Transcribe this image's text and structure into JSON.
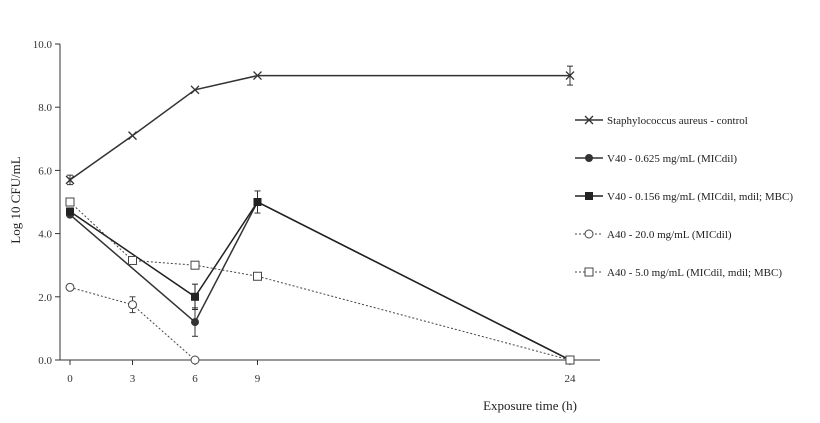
{
  "chart_data": {
    "type": "line",
    "xlabel": "Exposure time (h)",
    "ylabel": "Log 10 CFU/mL",
    "xlim": [
      0,
      24
    ],
    "ylim": [
      0,
      10
    ],
    "x_ticks": [
      0,
      3,
      6,
      9,
      24
    ],
    "x_tick_labels": [
      "0",
      "3",
      "6",
      "9",
      "24"
    ],
    "y_ticks": [
      0,
      2,
      4,
      6,
      8,
      10
    ],
    "y_tick_labels": [
      "0.0",
      "2.0",
      "4.0",
      "6.0",
      "8.0",
      "10.0"
    ],
    "grid": false,
    "legend_position": "right",
    "series": [
      {
        "name": "Staphylococcus aureus - control",
        "marker": "x",
        "line": "solid",
        "color": "#333333",
        "points": [
          {
            "x": 0,
            "y": 5.7,
            "err": 0.15
          },
          {
            "x": 3,
            "y": 7.1
          },
          {
            "x": 6,
            "y": 8.55
          },
          {
            "x": 9,
            "y": 9.0
          },
          {
            "x": 24,
            "y": 9.0,
            "err": 0.3
          }
        ]
      },
      {
        "name": "V40 - 0.625 mg/mL (MICdil)",
        "marker": "circle-filled",
        "line": "solid",
        "color": "#333333",
        "points": [
          {
            "x": 0,
            "y": 4.6
          },
          {
            "x": 6,
            "y": 1.2,
            "err": 0.45
          },
          {
            "x": 9,
            "y": 5.0,
            "err": 0.35
          },
          {
            "x": 24,
            "y": 0.0
          }
        ]
      },
      {
        "name": "V40 - 0.156 mg/mL (MICdil, mdil; MBC)",
        "marker": "square-filled",
        "line": "solid",
        "color": "#222222",
        "points": [
          {
            "x": 0,
            "y": 4.7
          },
          {
            "x": 6,
            "y": 2.0,
            "err": 0.4
          },
          {
            "x": 9,
            "y": 5.0
          },
          {
            "x": 24,
            "y": 0.0
          }
        ]
      },
      {
        "name": "A40 - 20.0 mg/mL (MICdil)",
        "marker": "circle-open",
        "line": "dotted",
        "color": "#444444",
        "points": [
          {
            "x": 0,
            "y": 2.3
          },
          {
            "x": 3,
            "y": 1.75,
            "err": 0.25
          },
          {
            "x": 6,
            "y": 0.0
          }
        ]
      },
      {
        "name": "A40 - 5.0 mg/mL (MICdil, mdil; MBC)",
        "marker": "square-open",
        "line": "dotted",
        "color": "#444444",
        "points": [
          {
            "x": 0,
            "y": 5.0
          },
          {
            "x": 3,
            "y": 3.15
          },
          {
            "x": 6,
            "y": 3.0
          },
          {
            "x": 9,
            "y": 2.65
          },
          {
            "x": 24,
            "y": 0.0
          }
        ]
      }
    ]
  }
}
